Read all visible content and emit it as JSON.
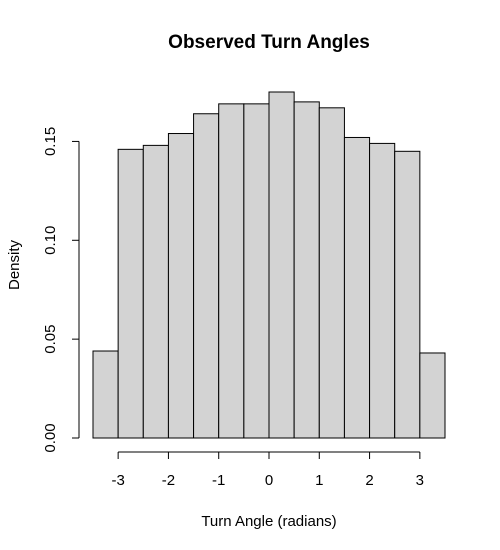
{
  "chart_data": {
    "type": "bar",
    "title": "Observed Turn Angles",
    "xlabel": "Turn Angle (radians)",
    "ylabel": "Density",
    "bin_edges": [
      -3.5,
      -3.0,
      -2.5,
      -2.0,
      -1.5,
      -1.0,
      -0.5,
      0.0,
      0.5,
      1.0,
      1.5,
      2.0,
      2.5,
      3.0,
      3.5
    ],
    "values": [
      0.044,
      0.146,
      0.148,
      0.154,
      0.164,
      0.169,
      0.169,
      0.175,
      0.17,
      0.167,
      0.152,
      0.149,
      0.145,
      0.043
    ],
    "xlim": [
      -3.5,
      3.5
    ],
    "ylim": [
      0,
      0.175
    ],
    "x_ticks": [
      -3,
      -2,
      -1,
      0,
      1,
      2,
      3
    ],
    "x_tick_labels": [
      "-3",
      "-2",
      "-1",
      "0",
      "1",
      "2",
      "3"
    ],
    "y_ticks": [
      0.0,
      0.05,
      0.1,
      0.15
    ],
    "y_tick_labels": [
      "0.00",
      "0.05",
      "0.10",
      "0.15"
    ],
    "bar_fill": "#d3d3d3",
    "bar_stroke": "#000000",
    "grid": false
  }
}
